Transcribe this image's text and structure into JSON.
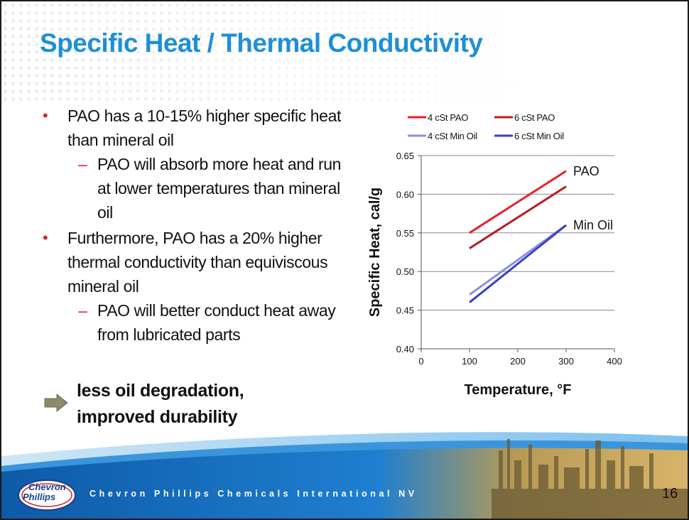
{
  "slide": {
    "title": "Specific Heat / Thermal Conductivity",
    "bullets": [
      {
        "level": 1,
        "text": "PAO has a 10-15% higher specific heat than mineral oil"
      },
      {
        "level": 2,
        "text": "PAO will absorb more heat and run at lower temperatures than mineral oil"
      },
      {
        "level": 1,
        "text": "Furthermore, PAO has a 20% higher thermal conductivity than equiviscous mineral oil"
      },
      {
        "level": 2,
        "text": "PAO will better conduct heat away from lubricated parts"
      }
    ],
    "bullet_marker": "•",
    "sub_marker": "–",
    "conclusion_line1": "less oil degradation,",
    "conclusion_line2": "improved durability",
    "footer_text": "Chevron Phillips Chemicals International NV",
    "logo_line1": "Chevron",
    "logo_line2": "Phillips",
    "page_number": "16",
    "colors": {
      "title": "#1e8fd5",
      "bullet": "#e01e2c",
      "footer_blue": "#1565b8"
    }
  },
  "chart_data": {
    "type": "line",
    "xlabel": "Temperature, °F",
    "ylabel": "Specific Heat, cal/g",
    "xlim": [
      0,
      400
    ],
    "ylim": [
      0.4,
      0.65
    ],
    "x_ticks": [
      0,
      100,
      200,
      300,
      400
    ],
    "y_ticks": [
      0.4,
      0.45,
      0.5,
      0.55,
      0.6,
      0.65
    ],
    "x_tick_labels": [
      "0",
      "100",
      "200",
      "300",
      "400"
    ],
    "y_tick_labels": [
      "0.40",
      "0.45",
      "0.50",
      "0.55",
      "0.60",
      "0.65"
    ],
    "grid": "horizontal",
    "legend_placement": "top",
    "series": [
      {
        "name": "4 cSt PAO",
        "color": "#e8202a",
        "x": [
          100,
          300
        ],
        "y": [
          0.55,
          0.63
        ]
      },
      {
        "name": "6 cSt PAO",
        "color": "#b71c24",
        "x": [
          100,
          300
        ],
        "y": [
          0.53,
          0.61
        ]
      },
      {
        "name": "4 cSt Min Oil",
        "color": "#8c8fe0",
        "x": [
          100,
          300
        ],
        "y": [
          0.47,
          0.56
        ]
      },
      {
        "name": "6 cSt Min Oil",
        "color": "#3a3fc2",
        "x": [
          100,
          300
        ],
        "y": [
          0.46,
          0.56
        ]
      }
    ],
    "annotations": [
      {
        "text": "PAO",
        "x": 300,
        "y": 0.63
      },
      {
        "text": "Min Oil",
        "x": 300,
        "y": 0.56
      }
    ]
  }
}
